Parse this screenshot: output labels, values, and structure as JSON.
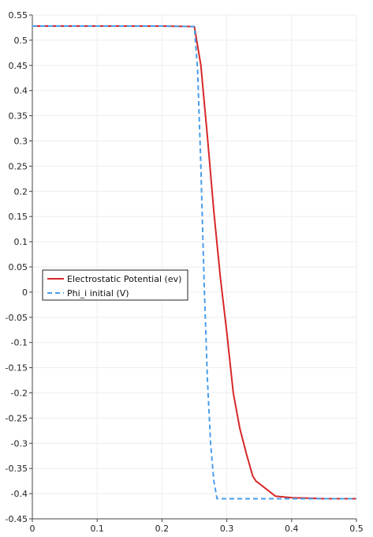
{
  "chart_data": {
    "type": "line",
    "title": "",
    "xlabel": "",
    "ylabel": "",
    "xlim": [
      0,
      0.5
    ],
    "ylim": [
      -0.45,
      0.55
    ],
    "x_ticks": [
      "0",
      "0.1",
      "0.2",
      "0.3",
      "0.4",
      "0.5"
    ],
    "x_tick_values": [
      0,
      0.1,
      0.2,
      0.3,
      0.4,
      0.5
    ],
    "y_ticks": [
      "0.55",
      "0.5",
      "0.45",
      "0.4",
      "0.35",
      "0.3",
      "0.25",
      "0.2",
      "0.15",
      "0.1",
      "0.05",
      "0",
      "-0.05",
      "-0.1",
      "-0.15",
      "-0.2",
      "-0.25",
      "-0.3",
      "-0.35",
      "-0.4",
      "-0.45"
    ],
    "y_tick_values": [
      0.55,
      0.5,
      0.45,
      0.4,
      0.35,
      0.3,
      0.25,
      0.2,
      0.15,
      0.1,
      0.05,
      0,
      -0.05,
      -0.1,
      -0.15,
      -0.2,
      -0.25,
      -0.3,
      -0.35,
      -0.4,
      -0.45
    ],
    "grid": true,
    "legend_position": "middle-left",
    "series": [
      {
        "name": "Electrostatic Potential (ev)",
        "color": "#d62728",
        "style": "solid",
        "x": [
          0,
          0.05,
          0.1,
          0.15,
          0.2,
          0.25,
          0.26,
          0.27,
          0.28,
          0.29,
          0.3,
          0.31,
          0.32,
          0.33,
          0.34,
          0.345,
          0.36,
          0.375,
          0.4,
          0.45,
          0.5
        ],
        "y": [
          0.528,
          0.528,
          0.528,
          0.528,
          0.528,
          0.527,
          0.45,
          0.31,
          0.16,
          0.03,
          -0.08,
          -0.2,
          -0.27,
          -0.32,
          -0.365,
          -0.375,
          -0.39,
          -0.405,
          -0.408,
          -0.41,
          -0.41
        ]
      },
      {
        "name": "Phi_i initial (V)",
        "color": "#4a9eea",
        "style": "dashed",
        "x": [
          0,
          0.05,
          0.1,
          0.15,
          0.2,
          0.25,
          0.255,
          0.26,
          0.265,
          0.27,
          0.275,
          0.28,
          0.285,
          0.29,
          0.3,
          0.35,
          0.4,
          0.45,
          0.5
        ],
        "y": [
          0.528,
          0.528,
          0.528,
          0.528,
          0.528,
          0.527,
          0.44,
          0.25,
          0.02,
          -0.17,
          -0.3,
          -0.375,
          -0.41,
          -0.41,
          -0.41,
          -0.41,
          -0.41,
          -0.41,
          -0.41
        ]
      }
    ]
  }
}
